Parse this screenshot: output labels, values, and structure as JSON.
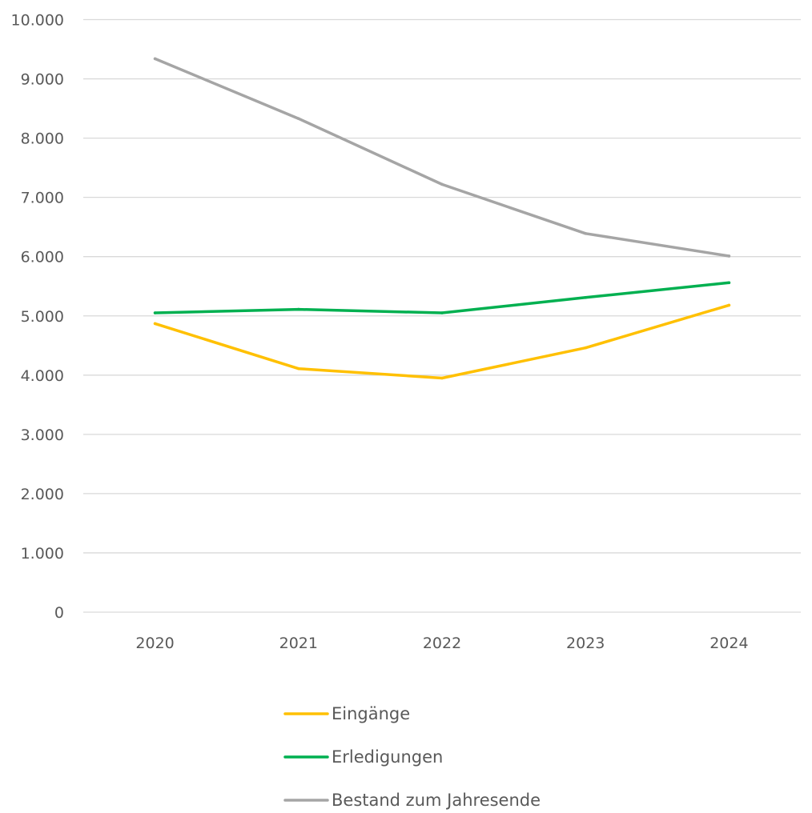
{
  "chart_data": {
    "type": "line",
    "categories": [
      "2020",
      "2021",
      "2022",
      "2023",
      "2024"
    ],
    "ylim": [
      0,
      10000
    ],
    "yticks": [
      0,
      1000,
      2000,
      3000,
      4000,
      5000,
      6000,
      7000,
      8000,
      9000,
      10000
    ],
    "ytick_labels": [
      "0",
      "1.000",
      "2.000",
      "3.000",
      "4.000",
      "5.000",
      "6.000",
      "7.000",
      "8.000",
      "9.000",
      "10.000"
    ],
    "grid": true,
    "legend_position": "bottom",
    "title": "",
    "xlabel": "",
    "ylabel": "",
    "series": [
      {
        "name": "Eingänge",
        "color": "#FFC000",
        "values": [
          4870,
          4110,
          3950,
          4460,
          5180
        ]
      },
      {
        "name": "Erledigungen",
        "color": "#00B050",
        "values": [
          5050,
          5110,
          5050,
          5310,
          5560
        ]
      },
      {
        "name": "Bestand zum Jahresende",
        "color": "#A5A5A5",
        "values": [
          9340,
          8330,
          7220,
          6390,
          6010
        ]
      }
    ]
  }
}
